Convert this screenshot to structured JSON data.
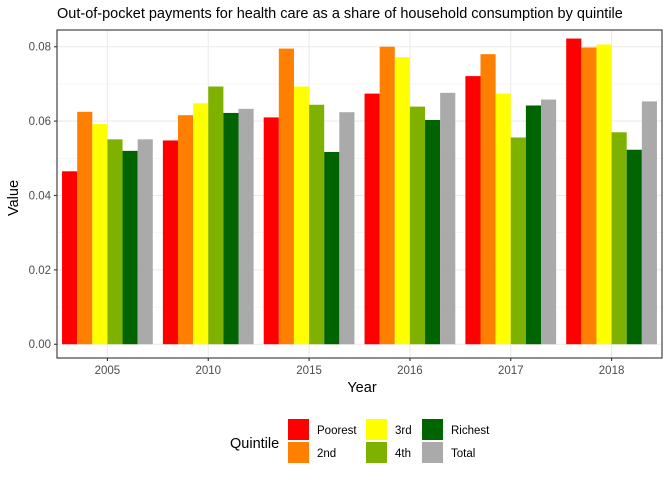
{
  "chart_data": {
    "type": "bar",
    "title": "Out-of-pocket payments for health care as a share of household consumption by quintile",
    "xlabel": "Year",
    "ylabel": "Value",
    "categories": [
      "2005",
      "2010",
      "2015",
      "2016",
      "2017",
      "2018"
    ],
    "ylim": [
      -0.0037,
      0.0845
    ],
    "yticks": [
      0.0,
      0.02,
      0.04,
      0.06,
      0.08
    ],
    "ytick_labels": [
      "0.00",
      "0.02",
      "0.04",
      "0.06",
      "0.08"
    ],
    "grid": true,
    "legend": {
      "title": "Quintile",
      "position": "bottom"
    },
    "series": [
      {
        "name": "Poorest",
        "color": "#FF0000",
        "values": [
          0.0465,
          0.0548,
          0.061,
          0.0674,
          0.0721,
          0.0822
        ]
      },
      {
        "name": "2nd",
        "color": "#FF7F00",
        "values": [
          0.0625,
          0.0616,
          0.0795,
          0.08,
          0.078,
          0.0798
        ]
      },
      {
        "name": "3rd",
        "color": "#FFFF00",
        "values": [
          0.0592,
          0.0648,
          0.0693,
          0.0772,
          0.0674,
          0.0806
        ]
      },
      {
        "name": "4th",
        "color": "#7FB200",
        "values": [
          0.0551,
          0.0693,
          0.0644,
          0.0639,
          0.0556,
          0.057
        ]
      },
      {
        "name": "Richest",
        "color": "#006400",
        "values": [
          0.052,
          0.0622,
          0.0517,
          0.0603,
          0.0642,
          0.0523
        ]
      },
      {
        "name": "Total",
        "color": "#AAAAAA",
        "values": [
          0.0551,
          0.0633,
          0.0624,
          0.0676,
          0.0658,
          0.0653
        ]
      }
    ]
  }
}
